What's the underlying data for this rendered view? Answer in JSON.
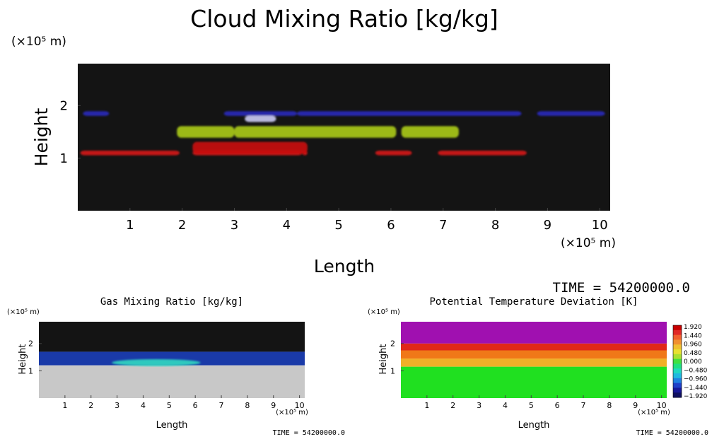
{
  "chart_data": [
    {
      "type": "heatmap",
      "title": "Cloud Mixing Ratio [kg/kg]",
      "xlabel": "Length",
      "ylabel": "Height",
      "x_unit": "(×10⁵ m)",
      "y_unit": "(×10⁵ m)",
      "x_ticks": [
        "1",
        "2",
        "3",
        "4",
        "5",
        "6",
        "7",
        "8",
        "9",
        "10"
      ],
      "y_ticks": [
        "1",
        "2"
      ],
      "xlim": [
        0,
        10.2
      ],
      "ylim": [
        0,
        2.8
      ],
      "time_label": "TIME = 54200000.0",
      "bands": [
        {
          "name": "red cloud layer",
          "color": "#d01818",
          "height": 1.1,
          "segments": [
            [
              0.05,
              1.95
            ],
            [
              2.2,
              4.3
            ],
            [
              4.3,
              4.4
            ],
            [
              5.7,
              6.4
            ],
            [
              6.9,
              8.6
            ]
          ]
        },
        {
          "name": "red cloud mass",
          "color": "#c81010",
          "height": 1.2,
          "segments": [
            [
              2.2,
              4.4
            ]
          ]
        },
        {
          "name": "green/yellow cloud layer",
          "color": "#a8c818",
          "height": 1.5,
          "segments": [
            [
              1.9,
              3.0
            ],
            [
              3.0,
              6.1
            ],
            [
              6.2,
              7.3
            ]
          ]
        },
        {
          "name": "blue cloud layer",
          "color": "#2828b8",
          "height": 1.85,
          "segments": [
            [
              0.1,
              0.6
            ],
            [
              2.8,
              4.2
            ],
            [
              4.2,
              8.5
            ],
            [
              8.8,
              10.1
            ]
          ]
        },
        {
          "name": "white core",
          "color": "#c8c8f0",
          "height": 1.75,
          "segments": [
            [
              3.2,
              3.8
            ]
          ]
        }
      ]
    },
    {
      "type": "heatmap",
      "title": "Gas Mixing Ratio [kg/kg]",
      "xlabel": "Length",
      "ylabel": "Height",
      "x_unit": "(×10⁵ m)",
      "y_unit": "(×10⁵ m)",
      "x_ticks": [
        "1",
        "2",
        "3",
        "4",
        "5",
        "6",
        "7",
        "8",
        "9",
        "10"
      ],
      "y_ticks": [
        "1",
        "2"
      ],
      "xlim": [
        0,
        10.2
      ],
      "ylim": [
        0,
        2.8
      ],
      "time_label": "TIME = 54200000.0",
      "layers": [
        {
          "name": "upper dry air",
          "color": "#141414",
          "from": 1.7,
          "to": 2.8
        },
        {
          "name": "blue transition layer",
          "color": "#1a3aa8",
          "from": 1.2,
          "to": 1.7
        },
        {
          "name": "lower moist air",
          "color": "#c8c8c8",
          "from": 0,
          "to": 1.2
        }
      ],
      "features": [
        {
          "name": "cyan plume",
          "color": "#30d8c0",
          "x": [
            2.8,
            6.2
          ],
          "height": 1.3
        }
      ]
    },
    {
      "type": "heatmap",
      "title": "Potential Temperature Deviation [K]",
      "xlabel": "Length",
      "ylabel": "Height",
      "x_unit": "(×10⁵ m)",
      "y_unit": "(×10⁵ m)",
      "x_ticks": [
        "1",
        "2",
        "3",
        "4",
        "5",
        "6",
        "7",
        "8",
        "9",
        "10"
      ],
      "y_ticks": [
        "1",
        "2"
      ],
      "xlim": [
        0,
        10.2
      ],
      "ylim": [
        0,
        2.8
      ],
      "time_label": "TIME = 54200000.0",
      "layers": [
        {
          "name": "upper layer",
          "color": "#a010b0",
          "from": 2.0,
          "to": 2.8
        },
        {
          "name": "inversion",
          "color": "#e02818",
          "from": 1.75,
          "to": 2.0
        },
        {
          "name": "warm layer",
          "color": "#f07818",
          "from": 1.45,
          "to": 1.75
        },
        {
          "name": "mixed layer",
          "color": "#f0b028",
          "from": 1.15,
          "to": 1.45
        },
        {
          "name": "lower layer",
          "color": "#20e020",
          "from": 0,
          "to": 1.15
        }
      ],
      "colorbar": {
        "labels": [
          "1.920",
          "1.440",
          "0.960",
          "0.480",
          "0.000",
          "−0.480",
          "−0.960",
          "−1.440",
          "−1.920"
        ],
        "colors": [
          "#c80000",
          "#e02828",
          "#f06030",
          "#f09030",
          "#f0c030",
          "#e8e030",
          "#a8e030",
          "#40e040",
          "#20e080",
          "#20d8c0",
          "#20b8e0",
          "#2080e0",
          "#2040c8",
          "#181898",
          "#101060"
        ]
      }
    }
  ]
}
